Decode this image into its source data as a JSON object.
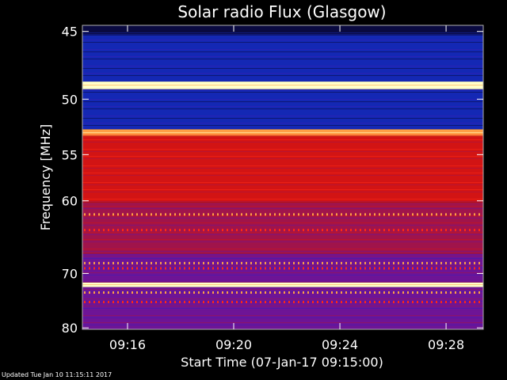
{
  "footer": {
    "updated": "Updated Tue Jan 10 11:15:11 2017"
  },
  "chart_data": {
    "type": "heatmap",
    "title": "Solar radio Flux (Glasgow)",
    "xlabel": "Start Time (07-Jan-17 09:15:00)",
    "ylabel": "Frequency [MHz]",
    "x_range_minutes": [
      -0.7,
      14.4
    ],
    "y_range_mhz": [
      44.6,
      80.3
    ],
    "y_ticks": [
      45,
      50,
      55,
      60,
      70,
      80
    ],
    "y_tick_labels": [
      "45",
      "50",
      "55",
      "60",
      "70",
      "80"
    ],
    "x_ticks_minutes": [
      1,
      5,
      9,
      13
    ],
    "x_tick_labels": [
      "09:16",
      "09:20",
      "09:24",
      "09:28"
    ],
    "colormap": [
      "#0a0a40",
      "#1428b4",
      "#3c1eb4",
      "#6e1496",
      "#a0144b",
      "#d21414",
      "#ff2814",
      "#ffa046",
      "#ffffc8"
    ],
    "frequency_bands": [
      {
        "from_mhz": 44.6,
        "to_mhz": 45.2,
        "level": "background-low"
      },
      {
        "from_mhz": 45.2,
        "to_mhz": 48.6,
        "level": "low"
      },
      {
        "from_mhz": 48.6,
        "to_mhz": 49.2,
        "level": "very-high"
      },
      {
        "from_mhz": 49.2,
        "to_mhz": 52.6,
        "level": "low"
      },
      {
        "from_mhz": 52.6,
        "to_mhz": 53.2,
        "level": "high"
      },
      {
        "from_mhz": 53.2,
        "to_mhz": 60.2,
        "level": "medium-high"
      },
      {
        "from_mhz": 60.2,
        "to_mhz": 67.0,
        "level": "medium"
      },
      {
        "from_mhz": 67.0,
        "to_mhz": 71.5,
        "level": "low-medium"
      },
      {
        "from_mhz": 71.5,
        "to_mhz": 72.2,
        "level": "very-high"
      },
      {
        "from_mhz": 72.2,
        "to_mhz": 80.3,
        "level": "low-medium"
      }
    ]
  }
}
